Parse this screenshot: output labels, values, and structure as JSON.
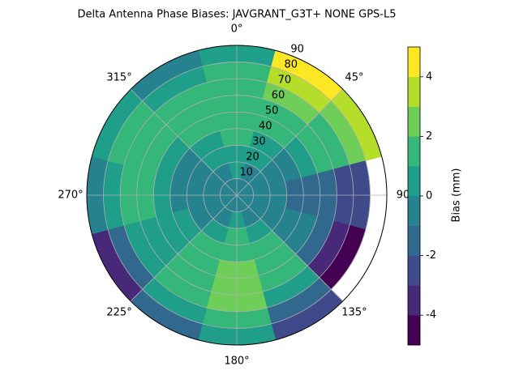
{
  "chart_data": {
    "type": "polar_contour",
    "title": "Delta Antenna Phase Biases: JAVGRANT_G3T+   NONE GPS-L5",
    "colorbar_label": "Bias (mm)",
    "azimuths": [
      0,
      30,
      60,
      90,
      120,
      150,
      180,
      210,
      240,
      270,
      300,
      330
    ],
    "zenith_edges": [
      0,
      10,
      20,
      30,
      40,
      50,
      60,
      70,
      80,
      90
    ],
    "z": [
      [
        -0.5,
        -0.5,
        -0.5,
        -0.5,
        -0.5,
        -0.5,
        -0.5,
        -0.5,
        -0.5,
        -0.5,
        -0.5,
        -0.5
      ],
      [
        0.5,
        -0.5,
        -0.5,
        -0.5,
        -0.5,
        -0.5,
        0.5,
        -0.5,
        -0.5,
        -0.5,
        -0.5,
        -0.5
      ],
      [
        0.5,
        0.5,
        -0.5,
        -0.5,
        -0.5,
        0.5,
        1.5,
        0.5,
        -0.5,
        -0.5,
        -0.5,
        0.5
      ],
      [
        1.5,
        0.5,
        -0.5,
        -1.5,
        -0.5,
        1.5,
        1.5,
        1.5,
        0.5,
        -0.5,
        -0.5,
        0.5
      ],
      [
        1.5,
        1.5,
        0.5,
        -1.5,
        -0.5,
        1.5,
        2.5,
        1.5,
        0.5,
        0.5,
        0.5,
        1.5
      ],
      [
        1.5,
        1.5,
        1.5,
        -1.5,
        -1.5,
        1.5,
        2.5,
        1.5,
        0.5,
        1.5,
        1.5,
        1.5
      ],
      [
        1.5,
        2.5,
        1.5,
        -2.5,
        -3.5,
        0.5,
        2.5,
        1.5,
        0.5,
        1.5,
        1.5,
        1.5
      ],
      [
        1.5,
        3.5,
        2.5,
        -2.5,
        -4.5,
        -1.5,
        1.5,
        0.5,
        -1.5,
        0.5,
        1.5,
        0.5
      ],
      [
        0.5,
        4.5,
        3.5,
        null,
        null,
        -2.5,
        0.5,
        -1.5,
        -3.5,
        -0.5,
        0.5,
        -0.5
      ]
    ],
    "levels": [
      -5,
      -4,
      -3,
      -2,
      -1,
      0,
      1,
      2,
      3,
      4,
      5
    ],
    "colors": [
      "#440154",
      "#482878",
      "#3e4a89",
      "#31688e",
      "#26828e",
      "#1f9e89",
      "#35b779",
      "#6ece58",
      "#b5de2b",
      "#fde725"
    ],
    "rlim": [
      0,
      90
    ],
    "rticks": [
      10,
      20,
      30,
      40,
      50,
      60,
      70,
      80,
      90
    ],
    "thetaticks": [
      {
        "value": 0,
        "label": "0°"
      },
      {
        "value": 45,
        "label": "45°"
      },
      90,
      {
        "value": 135,
        "label": "135°"
      },
      {
        "value": 180,
        "label": "180°"
      },
      {
        "value": 225,
        "label": "225°"
      },
      {
        "value": 270,
        "label": "270°"
      },
      {
        "value": 315,
        "label": "315°"
      }
    ],
    "clim": [
      -5,
      5
    ],
    "cticks": [
      -4,
      -2,
      0,
      2,
      4
    ],
    "grid": true
  }
}
